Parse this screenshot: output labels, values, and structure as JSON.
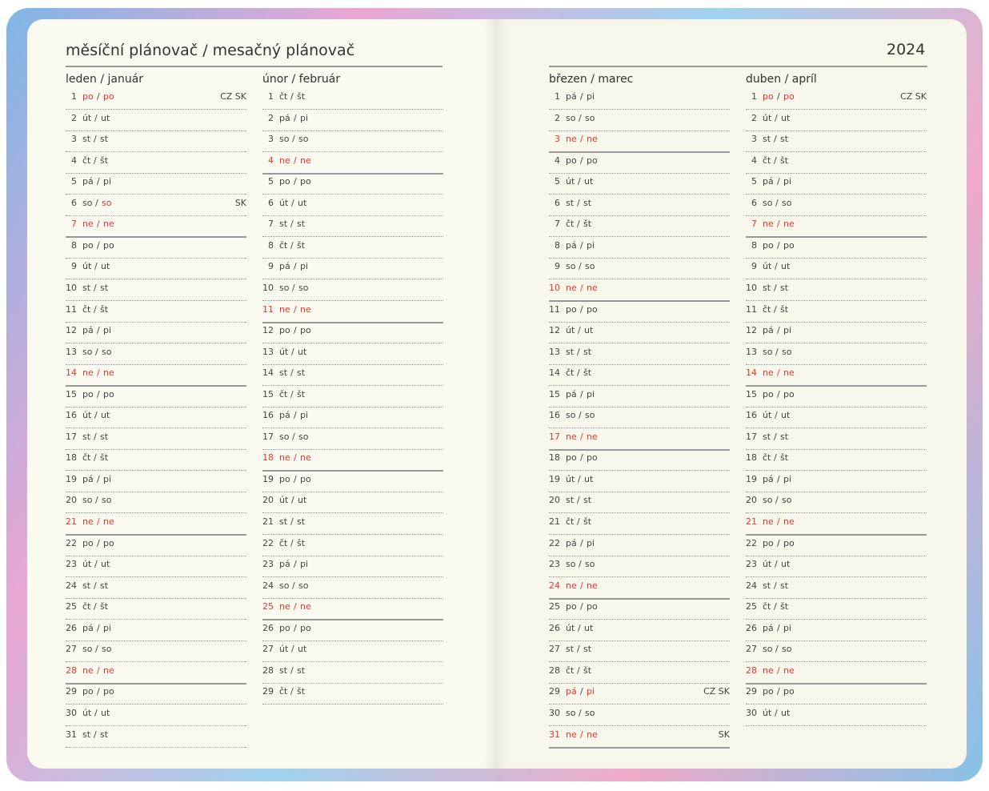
{
  "title": "měsíční plánovač / mesačný plánovač",
  "year": "2024",
  "sep": "/",
  "months": [
    {
      "label": "leden / január",
      "days": [
        {
          "d": 1,
          "cz": "po",
          "sk": "po",
          "red": [
            "cz",
            "sk"
          ],
          "note": "CZ SK"
        },
        {
          "d": 2,
          "cz": "út",
          "sk": "ut"
        },
        {
          "d": 3,
          "cz": "st",
          "sk": "st"
        },
        {
          "d": 4,
          "cz": "čt",
          "sk": "št"
        },
        {
          "d": 5,
          "cz": "pá",
          "sk": "pi"
        },
        {
          "d": 6,
          "cz": "so",
          "sk": "so",
          "red": [
            "sk"
          ],
          "note": "SK"
        },
        {
          "d": 7,
          "cz": "ne",
          "sk": "ne",
          "red": [
            "d",
            "cz",
            "sk"
          ]
        },
        {
          "d": 8,
          "cz": "po",
          "sk": "po"
        },
        {
          "d": 9,
          "cz": "út",
          "sk": "ut"
        },
        {
          "d": 10,
          "cz": "st",
          "sk": "st"
        },
        {
          "d": 11,
          "cz": "čt",
          "sk": "št"
        },
        {
          "d": 12,
          "cz": "pá",
          "sk": "pi"
        },
        {
          "d": 13,
          "cz": "so",
          "sk": "so"
        },
        {
          "d": 14,
          "cz": "ne",
          "sk": "ne",
          "red": [
            "d",
            "cz",
            "sk"
          ]
        },
        {
          "d": 15,
          "cz": "po",
          "sk": "po"
        },
        {
          "d": 16,
          "cz": "út",
          "sk": "ut"
        },
        {
          "d": 17,
          "cz": "st",
          "sk": "st"
        },
        {
          "d": 18,
          "cz": "čt",
          "sk": "št"
        },
        {
          "d": 19,
          "cz": "pá",
          "sk": "pi"
        },
        {
          "d": 20,
          "cz": "so",
          "sk": "so"
        },
        {
          "d": 21,
          "cz": "ne",
          "sk": "ne",
          "red": [
            "d",
            "cz",
            "sk"
          ]
        },
        {
          "d": 22,
          "cz": "po",
          "sk": "po"
        },
        {
          "d": 23,
          "cz": "út",
          "sk": "ut"
        },
        {
          "d": 24,
          "cz": "st",
          "sk": "st"
        },
        {
          "d": 25,
          "cz": "čt",
          "sk": "št"
        },
        {
          "d": 26,
          "cz": "pá",
          "sk": "pi"
        },
        {
          "d": 27,
          "cz": "so",
          "sk": "so"
        },
        {
          "d": 28,
          "cz": "ne",
          "sk": "ne",
          "red": [
            "d",
            "cz",
            "sk"
          ]
        },
        {
          "d": 29,
          "cz": "po",
          "sk": "po"
        },
        {
          "d": 30,
          "cz": "út",
          "sk": "ut"
        },
        {
          "d": 31,
          "cz": "st",
          "sk": "st"
        }
      ]
    },
    {
      "label": "únor / február",
      "days": [
        {
          "d": 1,
          "cz": "čt",
          "sk": "št"
        },
        {
          "d": 2,
          "cz": "pá",
          "sk": "pi"
        },
        {
          "d": 3,
          "cz": "so",
          "sk": "so"
        },
        {
          "d": 4,
          "cz": "ne",
          "sk": "ne",
          "red": [
            "d",
            "cz",
            "sk"
          ]
        },
        {
          "d": 5,
          "cz": "po",
          "sk": "po"
        },
        {
          "d": 6,
          "cz": "út",
          "sk": "ut"
        },
        {
          "d": 7,
          "cz": "st",
          "sk": "st"
        },
        {
          "d": 8,
          "cz": "čt",
          "sk": "št"
        },
        {
          "d": 9,
          "cz": "pá",
          "sk": "pi"
        },
        {
          "d": 10,
          "cz": "so",
          "sk": "so"
        },
        {
          "d": 11,
          "cz": "ne",
          "sk": "ne",
          "red": [
            "d",
            "cz",
            "sk"
          ]
        },
        {
          "d": 12,
          "cz": "po",
          "sk": "po"
        },
        {
          "d": 13,
          "cz": "út",
          "sk": "ut"
        },
        {
          "d": 14,
          "cz": "st",
          "sk": "st"
        },
        {
          "d": 15,
          "cz": "čt",
          "sk": "št"
        },
        {
          "d": 16,
          "cz": "pá",
          "sk": "pi"
        },
        {
          "d": 17,
          "cz": "so",
          "sk": "so"
        },
        {
          "d": 18,
          "cz": "ne",
          "sk": "ne",
          "red": [
            "d",
            "cz",
            "sk"
          ]
        },
        {
          "d": 19,
          "cz": "po",
          "sk": "po"
        },
        {
          "d": 20,
          "cz": "út",
          "sk": "ut"
        },
        {
          "d": 21,
          "cz": "st",
          "sk": "st"
        },
        {
          "d": 22,
          "cz": "čt",
          "sk": "št"
        },
        {
          "d": 23,
          "cz": "pá",
          "sk": "pi"
        },
        {
          "d": 24,
          "cz": "so",
          "sk": "so"
        },
        {
          "d": 25,
          "cz": "ne",
          "sk": "ne",
          "red": [
            "d",
            "cz",
            "sk"
          ]
        },
        {
          "d": 26,
          "cz": "po",
          "sk": "po"
        },
        {
          "d": 27,
          "cz": "út",
          "sk": "ut"
        },
        {
          "d": 28,
          "cz": "st",
          "sk": "st"
        },
        {
          "d": 29,
          "cz": "čt",
          "sk": "št"
        }
      ]
    },
    {
      "label": "březen / marec",
      "days": [
        {
          "d": 1,
          "cz": "pá",
          "sk": "pi"
        },
        {
          "d": 2,
          "cz": "so",
          "sk": "so"
        },
        {
          "d": 3,
          "cz": "ne",
          "sk": "ne",
          "red": [
            "d",
            "cz",
            "sk"
          ]
        },
        {
          "d": 4,
          "cz": "po",
          "sk": "po"
        },
        {
          "d": 5,
          "cz": "út",
          "sk": "ut"
        },
        {
          "d": 6,
          "cz": "st",
          "sk": "st"
        },
        {
          "d": 7,
          "cz": "čt",
          "sk": "št"
        },
        {
          "d": 8,
          "cz": "pá",
          "sk": "pi"
        },
        {
          "d": 9,
          "cz": "so",
          "sk": "so"
        },
        {
          "d": 10,
          "cz": "ne",
          "sk": "ne",
          "red": [
            "d",
            "cz",
            "sk"
          ]
        },
        {
          "d": 11,
          "cz": "po",
          "sk": "po"
        },
        {
          "d": 12,
          "cz": "út",
          "sk": "ut"
        },
        {
          "d": 13,
          "cz": "st",
          "sk": "st"
        },
        {
          "d": 14,
          "cz": "čt",
          "sk": "št"
        },
        {
          "d": 15,
          "cz": "pá",
          "sk": "pi"
        },
        {
          "d": 16,
          "cz": "so",
          "sk": "so"
        },
        {
          "d": 17,
          "cz": "ne",
          "sk": "ne",
          "red": [
            "d",
            "cz",
            "sk"
          ]
        },
        {
          "d": 18,
          "cz": "po",
          "sk": "po"
        },
        {
          "d": 19,
          "cz": "út",
          "sk": "ut"
        },
        {
          "d": 20,
          "cz": "st",
          "sk": "st"
        },
        {
          "d": 21,
          "cz": "čt",
          "sk": "št"
        },
        {
          "d": 22,
          "cz": "pá",
          "sk": "pi"
        },
        {
          "d": 23,
          "cz": "so",
          "sk": "so"
        },
        {
          "d": 24,
          "cz": "ne",
          "sk": "ne",
          "red": [
            "d",
            "cz",
            "sk"
          ]
        },
        {
          "d": 25,
          "cz": "po",
          "sk": "po"
        },
        {
          "d": 26,
          "cz": "út",
          "sk": "ut"
        },
        {
          "d": 27,
          "cz": "st",
          "sk": "st"
        },
        {
          "d": 28,
          "cz": "čt",
          "sk": "št"
        },
        {
          "d": 29,
          "cz": "pá",
          "sk": "pi",
          "red": [
            "cz",
            "sk"
          ],
          "note": "CZ SK"
        },
        {
          "d": 30,
          "cz": "so",
          "sk": "so"
        },
        {
          "d": 31,
          "cz": "ne",
          "sk": "ne",
          "red": [
            "d",
            "cz",
            "sk"
          ],
          "note": "SK"
        }
      ]
    },
    {
      "label": "duben / apríl",
      "days": [
        {
          "d": 1,
          "cz": "po",
          "sk": "po",
          "red": [
            "cz",
            "sk"
          ],
          "note": "CZ SK"
        },
        {
          "d": 2,
          "cz": "út",
          "sk": "ut"
        },
        {
          "d": 3,
          "cz": "st",
          "sk": "st"
        },
        {
          "d": 4,
          "cz": "čt",
          "sk": "št"
        },
        {
          "d": 5,
          "cz": "pá",
          "sk": "pi"
        },
        {
          "d": 6,
          "cz": "so",
          "sk": "so"
        },
        {
          "d": 7,
          "cz": "ne",
          "sk": "ne",
          "red": [
            "d",
            "cz",
            "sk"
          ]
        },
        {
          "d": 8,
          "cz": "po",
          "sk": "po"
        },
        {
          "d": 9,
          "cz": "út",
          "sk": "ut"
        },
        {
          "d": 10,
          "cz": "st",
          "sk": "st"
        },
        {
          "d": 11,
          "cz": "čt",
          "sk": "št"
        },
        {
          "d": 12,
          "cz": "pá",
          "sk": "pi"
        },
        {
          "d": 13,
          "cz": "so",
          "sk": "so"
        },
        {
          "d": 14,
          "cz": "ne",
          "sk": "ne",
          "red": [
            "d",
            "cz",
            "sk"
          ]
        },
        {
          "d": 15,
          "cz": "po",
          "sk": "po"
        },
        {
          "d": 16,
          "cz": "út",
          "sk": "ut"
        },
        {
          "d": 17,
          "cz": "st",
          "sk": "st"
        },
        {
          "d": 18,
          "cz": "čt",
          "sk": "št"
        },
        {
          "d": 19,
          "cz": "pá",
          "sk": "pi"
        },
        {
          "d": 20,
          "cz": "so",
          "sk": "so"
        },
        {
          "d": 21,
          "cz": "ne",
          "sk": "ne",
          "red": [
            "d",
            "cz",
            "sk"
          ]
        },
        {
          "d": 22,
          "cz": "po",
          "sk": "po"
        },
        {
          "d": 23,
          "cz": "út",
          "sk": "ut"
        },
        {
          "d": 24,
          "cz": "st",
          "sk": "st"
        },
        {
          "d": 25,
          "cz": "čt",
          "sk": "št"
        },
        {
          "d": 26,
          "cz": "pá",
          "sk": "pi"
        },
        {
          "d": 27,
          "cz": "so",
          "sk": "so"
        },
        {
          "d": 28,
          "cz": "ne",
          "sk": "ne",
          "red": [
            "d",
            "cz",
            "sk"
          ]
        },
        {
          "d": 29,
          "cz": "po",
          "sk": "po"
        },
        {
          "d": 30,
          "cz": "út",
          "sk": "ut"
        }
      ]
    }
  ]
}
